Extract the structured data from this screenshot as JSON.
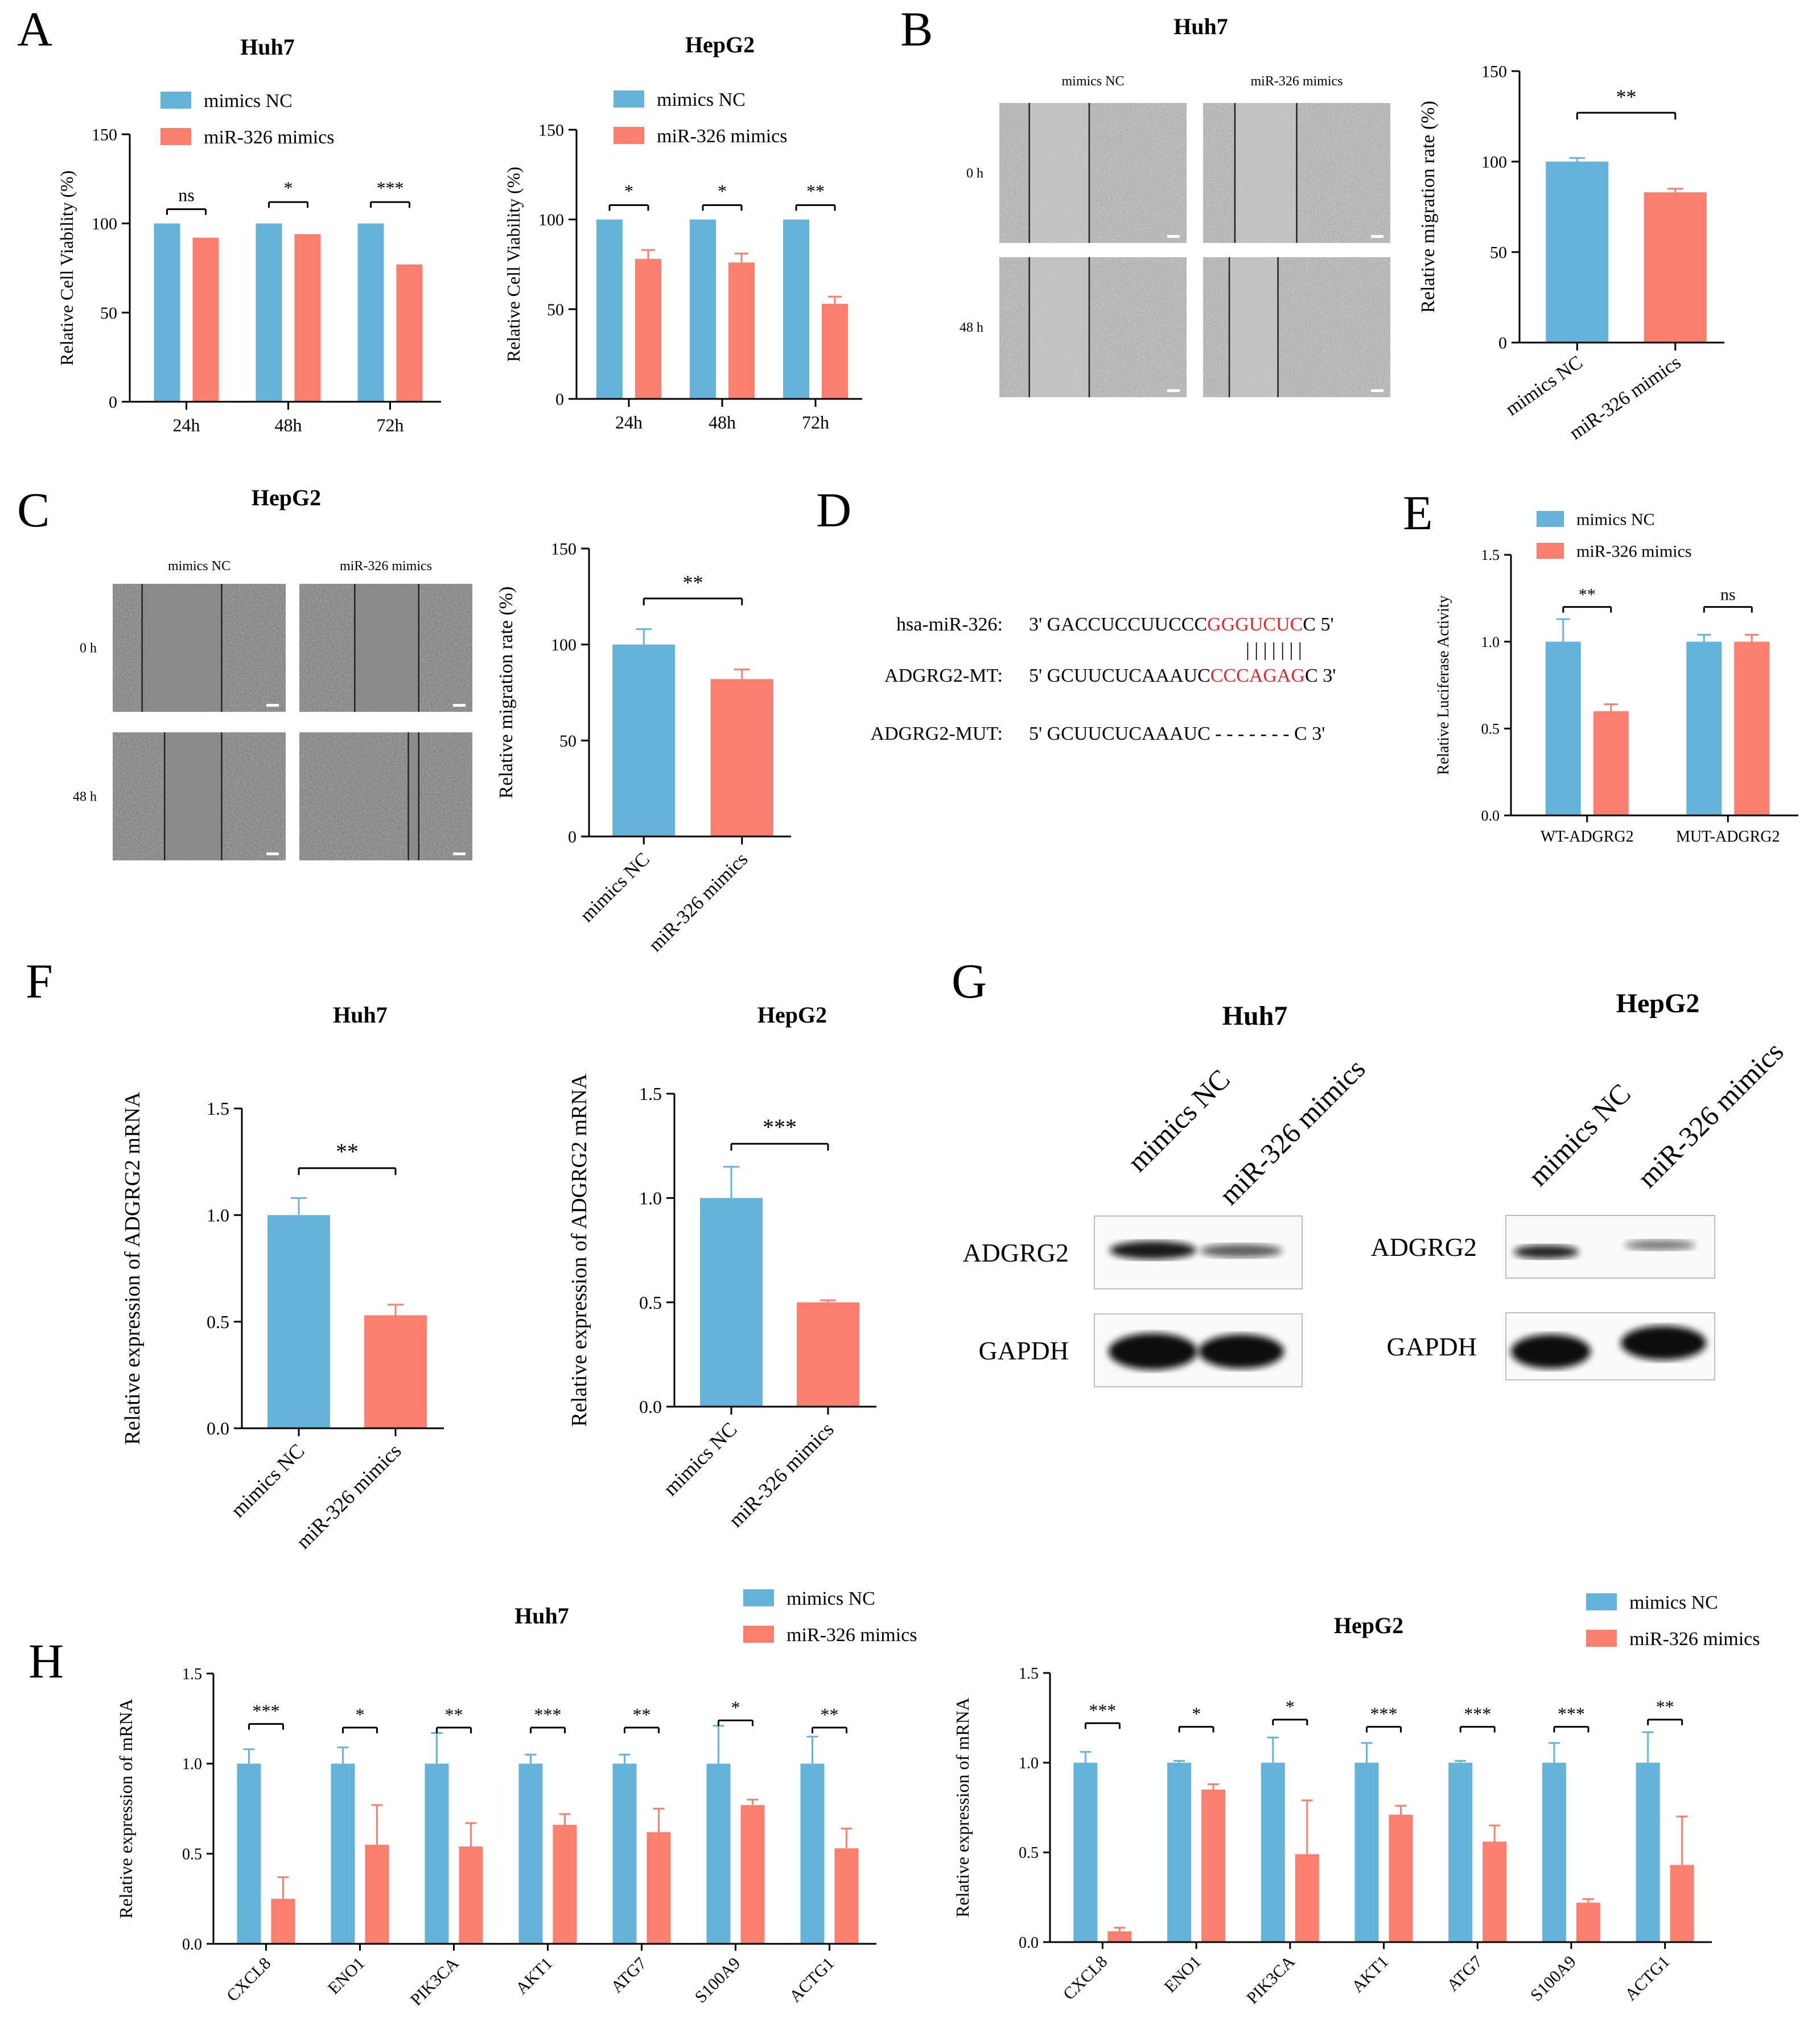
{
  "figure": {
    "colors": {
      "nc": "#66B3D9",
      "mimics": "#FA7F6F",
      "seq_highlight": "#E8232A",
      "axis": "#000000"
    },
    "legend": {
      "nc_label": "mimics NC",
      "mimics_label": "miR-326 mimics"
    },
    "panels": {
      "A": {
        "label": "A"
      },
      "B": {
        "label": "B"
      },
      "C": {
        "label": "C"
      },
      "D": {
        "label": "D"
      },
      "E": {
        "label": "E"
      },
      "F": {
        "label": "F"
      },
      "G": {
        "label": "G"
      },
      "H": {
        "label": "H"
      }
    },
    "scratch": {
      "B": {
        "title": "Huh7",
        "col_labels": [
          "mimics NC",
          "miR-326 mimics"
        ],
        "row_labels": [
          "0 h",
          "48 h"
        ]
      },
      "C": {
        "title": "HepG2",
        "col_labels": [
          "mimics NC",
          "miR-326 mimics"
        ],
        "row_labels": [
          "0 h",
          "48 h"
        ]
      }
    },
    "sequence": {
      "rows": [
        {
          "label": "hsa-miR-326:",
          "prefix": "3' GACCUCCUUCCC",
          "highlight": "GGGUCUC",
          "suffix": "C 5'"
        },
        {
          "label": "ADGRG2-MT:",
          "prefix": "5' GCUUCUCAAAUC",
          "highlight": "CCCAGAG",
          "suffix": "C 3'"
        },
        {
          "label": "ADGRG2-MUT:",
          "prefix": "5' GCUUCUCAAAUC",
          "highlight": "",
          "suffix": "- - - - - - - C 3'"
        }
      ],
      "pairing": "| | | | | | |"
    },
    "western": {
      "Huh7": {
        "title": "Huh7",
        "lanes": [
          "mimics NC",
          "miR-326 mimics"
        ],
        "bands": [
          "ADGRG2",
          "GAPDH"
        ]
      },
      "HepG2": {
        "title": "HepG2",
        "lanes": [
          "mimics NC",
          "miR-326 mimics"
        ],
        "bands": [
          "ADGRG2",
          "GAPDH"
        ]
      }
    }
  },
  "chart_data": [
    {
      "id": "A1",
      "type": "bar",
      "title": "Huh7",
      "ylabel": "Relative Cell Viability (%)",
      "categories": [
        "24h",
        "48h",
        "72h"
      ],
      "series": [
        {
          "name": "mimics NC",
          "values": [
            100,
            100,
            100
          ],
          "errors": [
            0,
            0,
            0
          ]
        },
        {
          "name": "miR-326 mimics",
          "values": [
            92,
            94,
            77
          ],
          "errors": [
            0,
            0,
            0
          ]
        }
      ],
      "significance": [
        "ns",
        "*",
        "***"
      ],
      "ylim": [
        0,
        150
      ],
      "yticks": [
        0,
        50,
        100,
        150
      ],
      "legend": "top"
    },
    {
      "id": "A2",
      "type": "bar",
      "title": "HepG2",
      "ylabel": "Relative Cell Viability (%)",
      "categories": [
        "24h",
        "48h",
        "72h"
      ],
      "series": [
        {
          "name": "mimics NC",
          "values": [
            100,
            100,
            100
          ],
          "errors": [
            0,
            0,
            0
          ]
        },
        {
          "name": "miR-326 mimics",
          "values": [
            78,
            76,
            53
          ],
          "errors": [
            5,
            5,
            4
          ]
        }
      ],
      "significance": [
        "*",
        "*",
        "**"
      ],
      "ylim": [
        0,
        150
      ],
      "yticks": [
        0,
        50,
        100,
        150
      ],
      "legend": "top"
    },
    {
      "id": "B",
      "type": "bar",
      "title": "",
      "ylabel": "Relative migration rate (%)",
      "categories": [
        "mimics NC",
        "miR-326 mimics"
      ],
      "values": [
        100,
        83
      ],
      "errors": [
        2,
        2
      ],
      "significance": [
        "**"
      ],
      "ylim": [
        0,
        150
      ],
      "yticks": [
        0,
        50,
        100,
        150
      ]
    },
    {
      "id": "C",
      "type": "bar",
      "title": "",
      "ylabel": "Relative migration rate (%)",
      "categories": [
        "mimics NC",
        "miR-326 mimics"
      ],
      "values": [
        100,
        82
      ],
      "errors": [
        8,
        5
      ],
      "significance": [
        "**"
      ],
      "ylim": [
        0,
        150
      ],
      "yticks": [
        0,
        50,
        100,
        150
      ]
    },
    {
      "id": "E",
      "type": "bar",
      "title": "",
      "ylabel": "Relative  Luciferase Activity",
      "categories": [
        "WT-ADGRG2",
        "MUT-ADGRG2"
      ],
      "series": [
        {
          "name": "mimics NC",
          "values": [
            1.0,
            1.0
          ],
          "errors": [
            0.13,
            0.04
          ]
        },
        {
          "name": "miR-326 mimics",
          "values": [
            0.6,
            1.0
          ],
          "errors": [
            0.04,
            0.04
          ]
        }
      ],
      "significance": [
        "**",
        "ns"
      ],
      "ylim": [
        0,
        1.5
      ],
      "yticks": [
        "0.0",
        "0.5",
        "1.0",
        "1.5"
      ],
      "legend": "top-left"
    },
    {
      "id": "F1",
      "type": "bar",
      "title": "Huh7",
      "ylabel": "Relative expression of ADGRG2 mRNA",
      "categories": [
        "mimics NC",
        "miR-326 mimics"
      ],
      "values": [
        1.0,
        0.53
      ],
      "errors": [
        0.08,
        0.05
      ],
      "significance": [
        "**"
      ],
      "ylim": [
        0,
        1.5
      ],
      "yticks": [
        "0.0",
        "0.5",
        "1.0",
        "1.5"
      ]
    },
    {
      "id": "F2",
      "type": "bar",
      "title": "HepG2",
      "ylabel": "Relative expression of ADGRG2 mRNA",
      "categories": [
        "mimics NC",
        "miR-326 mimics"
      ],
      "values": [
        1.0,
        0.5
      ],
      "errors": [
        0.15,
        0.01
      ],
      "significance": [
        "***"
      ],
      "ylim": [
        0,
        1.5
      ],
      "yticks": [
        "0.0",
        "0.5",
        "1.0",
        "1.5"
      ]
    },
    {
      "id": "H1",
      "type": "bar",
      "title": "Huh7",
      "ylabel": "Relative expression of mRNA",
      "categories": [
        "CXCL8",
        "ENO1",
        "PIK3CA",
        "AKT1",
        "ATG7",
        "S100A9",
        "ACTG1"
      ],
      "series": [
        {
          "name": "mimics NC",
          "values": [
            1.0,
            1.0,
            1.0,
            1.0,
            1.0,
            1.0,
            1.0
          ],
          "errors": [
            0.08,
            0.09,
            0.17,
            0.05,
            0.05,
            0.21,
            0.15
          ]
        },
        {
          "name": "miR-326 mimics",
          "values": [
            0.25,
            0.55,
            0.54,
            0.66,
            0.62,
            0.77,
            0.53
          ],
          "errors": [
            0.12,
            0.22,
            0.13,
            0.06,
            0.13,
            0.03,
            0.11
          ]
        }
      ],
      "significance": [
        "***",
        "*",
        "**",
        "***",
        "**",
        "*",
        "**"
      ],
      "ylim": [
        0,
        1.5
      ],
      "yticks": [
        "0.0",
        "0.5",
        "1.0",
        "1.5"
      ],
      "legend": "top-right"
    },
    {
      "id": "H2",
      "type": "bar",
      "title": "HepG2",
      "ylabel": "Relative expression of mRNA",
      "categories": [
        "CXCL8",
        "ENO1",
        "PIK3CA",
        "AKT1",
        "ATG7",
        "S100A9",
        "ACTG1"
      ],
      "series": [
        {
          "name": "mimics NC",
          "values": [
            1.0,
            1.0,
            1.0,
            1.0,
            1.0,
            1.0,
            1.0
          ],
          "errors": [
            0.06,
            0.01,
            0.14,
            0.11,
            0.01,
            0.11,
            0.17
          ]
        },
        {
          "name": "miR-326 mimics",
          "values": [
            0.06,
            0.85,
            0.49,
            0.71,
            0.56,
            0.22,
            0.43
          ],
          "errors": [
            0.02,
            0.03,
            0.3,
            0.05,
            0.09,
            0.02,
            0.27
          ]
        }
      ],
      "significance": [
        "***",
        "*",
        "*",
        "***",
        "***",
        "***",
        "**"
      ],
      "ylim": [
        0,
        1.5
      ],
      "yticks": [
        "0.0",
        "0.5",
        "1.0",
        "1.5"
      ],
      "legend": "top-right"
    }
  ]
}
